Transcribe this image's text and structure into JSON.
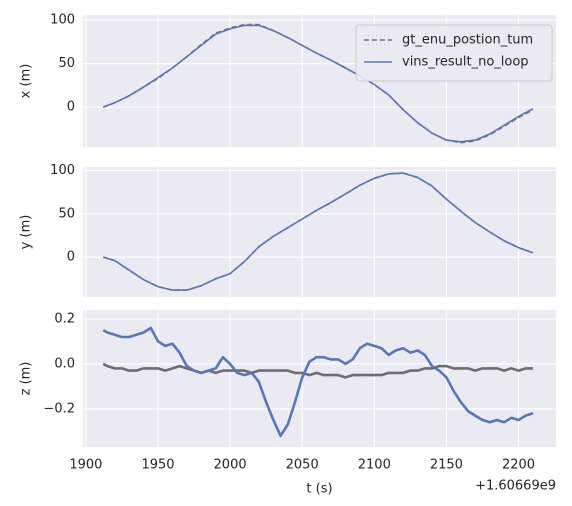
{
  "chart_data": [
    {
      "type": "line",
      "ylabel": "x (m)",
      "legend": "upper right",
      "grid": true,
      "xlim": [
        1898,
        2226
      ],
      "xticks": [
        1900,
        1950,
        2000,
        2050,
        2100,
        2150,
        2200
      ],
      "ylim": [
        -46,
        106
      ],
      "yticks": [
        0,
        50,
        100
      ],
      "x": [
        1912,
        1920,
        1930,
        1940,
        1950,
        1960,
        1970,
        1980,
        1990,
        2000,
        2010,
        2020,
        2030,
        2040,
        2050,
        2060,
        2070,
        2080,
        2090,
        2100,
        2110,
        2120,
        2130,
        2140,
        2150,
        2160,
        2170,
        2180,
        2190,
        2200,
        2210
      ],
      "series": [
        {
          "name": "gt_enu_postion_tum",
          "color": "#6e6e6e",
          "dashed": true,
          "values": [
            0,
            5,
            13,
            23,
            33,
            45,
            58,
            72,
            85,
            91,
            95,
            95,
            88,
            80,
            71,
            62,
            54,
            45,
            36,
            26,
            14,
            -3,
            -18,
            -30,
            -38,
            -41,
            -39,
            -32,
            -22,
            -12,
            -3
          ]
        },
        {
          "name": "vins_result_no_loop",
          "color": "#5a77b5",
          "dashed": false,
          "values": [
            0,
            5,
            13,
            23,
            34,
            45,
            58,
            71,
            84,
            90,
            94,
            94,
            88,
            80,
            71,
            62,
            54,
            45,
            36,
            26,
            14,
            -3,
            -18,
            -30,
            -38,
            -40,
            -38,
            -31,
            -21,
            -11,
            -2
          ]
        }
      ]
    },
    {
      "type": "line",
      "ylabel": "y (m)",
      "grid": true,
      "xlim": [
        1898,
        2226
      ],
      "xticks": [
        1900,
        1950,
        2000,
        2050,
        2100,
        2150,
        2200
      ],
      "ylim": [
        -46,
        104
      ],
      "yticks": [
        0,
        50,
        100
      ],
      "x": [
        1912,
        1920,
        1930,
        1940,
        1950,
        1960,
        1970,
        1980,
        1990,
        2000,
        2010,
        2020,
        2030,
        2040,
        2050,
        2060,
        2070,
        2080,
        2090,
        2100,
        2110,
        2120,
        2130,
        2140,
        2150,
        2160,
        2170,
        2180,
        2190,
        2200,
        2210
      ],
      "series": [
        {
          "color": "#6e6e6e",
          "dashed": true,
          "values": [
            0,
            -4,
            -15,
            -26,
            -34,
            -38,
            -38,
            -33,
            -25,
            -19,
            -5,
            12,
            24,
            34,
            44,
            54,
            63,
            73,
            83,
            91,
            96,
            97,
            92,
            82,
            67,
            53,
            40,
            29,
            19,
            11,
            5
          ]
        },
        {
          "color": "#5a77b5",
          "dashed": false,
          "values": [
            0,
            -4,
            -15,
            -26,
            -34,
            -38,
            -38,
            -33,
            -25,
            -19,
            -5,
            12,
            24,
            34,
            44,
            54,
            63,
            73,
            83,
            91,
            96,
            97,
            92,
            82,
            67,
            53,
            40,
            29,
            19,
            11,
            5
          ]
        }
      ]
    },
    {
      "type": "line",
      "ylabel": "z (m)",
      "xlabel": "t (s)",
      "x_offset_label": "+1.60669e9",
      "grid": true,
      "xlim": [
        1898,
        2226
      ],
      "xticks": [
        1900,
        1950,
        2000,
        2050,
        2100,
        2150,
        2200
      ],
      "ylim": [
        -0.37,
        0.24
      ],
      "yticks": [
        {
          "value": -0.2,
          "label": "−0.2"
        },
        {
          "value": 0,
          "label": "0.0"
        },
        {
          "value": 0.2,
          "label": "0.2"
        }
      ],
      "x": [
        1912,
        1915,
        1920,
        1925,
        1930,
        1935,
        1940,
        1945,
        1950,
        1955,
        1960,
        1965,
        1970,
        1975,
        1980,
        1985,
        1990,
        1995,
        2000,
        2005,
        2010,
        2015,
        2020,
        2025,
        2030,
        2035,
        2040,
        2045,
        2050,
        2055,
        2060,
        2065,
        2070,
        2075,
        2080,
        2085,
        2090,
        2095,
        2100,
        2105,
        2110,
        2115,
        2120,
        2125,
        2130,
        2135,
        2140,
        2145,
        2150,
        2155,
        2160,
        2165,
        2170,
        2175,
        2180,
        2185,
        2190,
        2195,
        2200,
        2205,
        2210
      ],
      "series": [
        {
          "color": "#6e6e6e",
          "dashed": false,
          "values": [
            0.0,
            -0.01,
            -0.02,
            -0.02,
            -0.03,
            -0.03,
            -0.02,
            -0.02,
            -0.02,
            -0.03,
            -0.02,
            -0.01,
            -0.02,
            -0.03,
            -0.04,
            -0.03,
            -0.04,
            -0.03,
            -0.03,
            -0.03,
            -0.03,
            -0.04,
            -0.03,
            -0.03,
            -0.03,
            -0.03,
            -0.03,
            -0.04,
            -0.04,
            -0.05,
            -0.04,
            -0.05,
            -0.05,
            -0.05,
            -0.06,
            -0.05,
            -0.05,
            -0.05,
            -0.05,
            -0.05,
            -0.04,
            -0.04,
            -0.04,
            -0.03,
            -0.03,
            -0.02,
            -0.02,
            -0.01,
            -0.01,
            -0.02,
            -0.02,
            -0.02,
            -0.03,
            -0.02,
            -0.02,
            -0.02,
            -0.03,
            -0.02,
            -0.03,
            -0.02,
            -0.02
          ]
        },
        {
          "color": "#5a77b5",
          "dashed": false,
          "values": [
            0.15,
            0.14,
            0.13,
            0.12,
            0.12,
            0.13,
            0.14,
            0.16,
            0.1,
            0.08,
            0.09,
            0.05,
            -0.01,
            -0.03,
            -0.04,
            -0.03,
            -0.02,
            0.03,
            0.0,
            -0.04,
            -0.05,
            -0.04,
            -0.08,
            -0.17,
            -0.25,
            -0.32,
            -0.27,
            -0.17,
            -0.06,
            0.01,
            0.03,
            0.03,
            0.02,
            0.02,
            0.0,
            0.02,
            0.07,
            0.09,
            0.08,
            0.07,
            0.04,
            0.06,
            0.07,
            0.05,
            0.06,
            0.04,
            -0.01,
            -0.03,
            -0.06,
            -0.12,
            -0.17,
            -0.21,
            -0.23,
            -0.25,
            -0.26,
            -0.25,
            -0.26,
            -0.24,
            -0.25,
            -0.23,
            -0.22
          ]
        }
      ]
    }
  ]
}
